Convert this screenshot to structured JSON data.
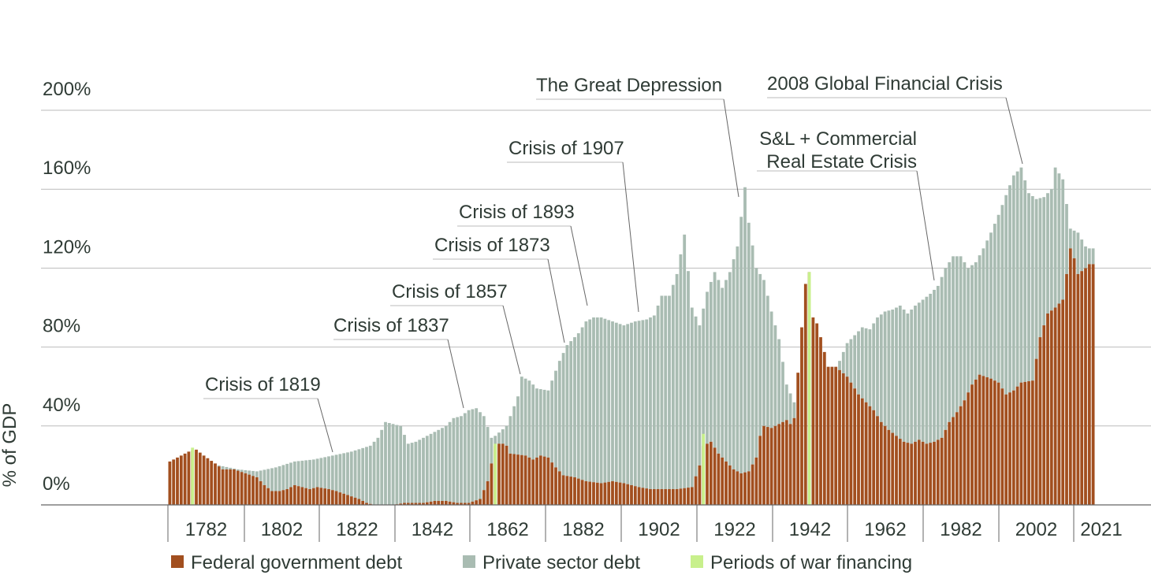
{
  "chart_data": {
    "type": "bar",
    "stacked": true,
    "ylabel": "% of GDP",
    "ylim": [
      0,
      200
    ],
    "y_ticks": [
      "0%",
      "40%",
      "80%",
      "120%",
      "160%",
      "200%"
    ],
    "y_tick_values": [
      0,
      40,
      80,
      120,
      160,
      200
    ],
    "x_tick_labels": [
      "1782",
      "1802",
      "1822",
      "1842",
      "1862",
      "1882",
      "1902",
      "1922",
      "1942",
      "1962",
      "1982",
      "2002",
      "2021"
    ],
    "x_range": [
      1776,
      2020
    ],
    "grid": "horizontal",
    "legend_position": "bottom",
    "colors": {
      "federal": "#a24f1f",
      "private": "#a9bcb2",
      "war": "#c8f08c",
      "axis": "#666666",
      "grid": "#bbbbbb",
      "text": "#2f3b35"
    },
    "series": [
      {
        "name": "Federal government debt",
        "key": "federal",
        "points": [
          [
            1776,
            22
          ],
          [
            1779,
            25
          ],
          [
            1781,
            27
          ],
          [
            1783,
            28
          ],
          [
            1785,
            25
          ],
          [
            1788,
            21
          ],
          [
            1790,
            18
          ],
          [
            1793,
            18
          ],
          [
            1796,
            16
          ],
          [
            1799,
            14
          ],
          [
            1801,
            10
          ],
          [
            1803,
            7
          ],
          [
            1805,
            7
          ],
          [
            1807,
            8
          ],
          [
            1809,
            10
          ],
          [
            1811,
            9
          ],
          [
            1813,
            8
          ],
          [
            1815,
            9
          ],
          [
            1818,
            8
          ],
          [
            1820,
            7
          ],
          [
            1823,
            5
          ],
          [
            1826,
            3
          ],
          [
            1828,
            1
          ],
          [
            1830,
            0
          ],
          [
            1833,
            0
          ],
          [
            1835,
            0
          ],
          [
            1838,
            1
          ],
          [
            1840,
            1
          ],
          [
            1843,
            1
          ],
          [
            1846,
            2
          ],
          [
            1849,
            2
          ],
          [
            1852,
            1
          ],
          [
            1855,
            1
          ],
          [
            1858,
            3
          ],
          [
            1860,
            12
          ],
          [
            1862,
            30
          ],
          [
            1863,
            31
          ],
          [
            1864,
            31
          ],
          [
            1865,
            30
          ],
          [
            1866,
            26
          ],
          [
            1870,
            25
          ],
          [
            1872,
            23
          ],
          [
            1874,
            25
          ],
          [
            1876,
            24
          ],
          [
            1878,
            19
          ],
          [
            1880,
            15
          ],
          [
            1883,
            14
          ],
          [
            1886,
            12
          ],
          [
            1890,
            11
          ],
          [
            1893,
            12
          ],
          [
            1896,
            11
          ],
          [
            1900,
            9
          ],
          [
            1903,
            8
          ],
          [
            1907,
            8
          ],
          [
            1910,
            8
          ],
          [
            1914,
            9
          ],
          [
            1916,
            20
          ],
          [
            1917,
            30
          ],
          [
            1919,
            32
          ],
          [
            1921,
            26
          ],
          [
            1923,
            22
          ],
          [
            1925,
            18
          ],
          [
            1927,
            16
          ],
          [
            1929,
            17
          ],
          [
            1931,
            24
          ],
          [
            1932,
            35
          ],
          [
            1933,
            40
          ],
          [
            1935,
            39
          ],
          [
            1937,
            41
          ],
          [
            1939,
            43
          ],
          [
            1940,
            41
          ],
          [
            1941,
            44
          ],
          [
            1942,
            67
          ],
          [
            1943,
            90
          ],
          [
            1944,
            112
          ],
          [
            1945,
            118
          ],
          [
            1946,
            95
          ],
          [
            1947,
            92
          ],
          [
            1948,
            85
          ],
          [
            1950,
            70
          ],
          [
            1952,
            70
          ],
          [
            1955,
            65
          ],
          [
            1958,
            56
          ],
          [
            1960,
            52
          ],
          [
            1962,
            48
          ],
          [
            1964,
            42
          ],
          [
            1966,
            38
          ],
          [
            1968,
            35
          ],
          [
            1970,
            32
          ],
          [
            1972,
            31
          ],
          [
            1974,
            33
          ],
          [
            1976,
            31
          ],
          [
            1978,
            32
          ],
          [
            1980,
            34
          ],
          [
            1982,
            42
          ],
          [
            1984,
            47
          ],
          [
            1986,
            53
          ],
          [
            1988,
            61
          ],
          [
            1990,
            66
          ],
          [
            1993,
            64
          ],
          [
            1995,
            62
          ],
          [
            1997,
            56
          ],
          [
            1999,
            58
          ],
          [
            2001,
            62
          ],
          [
            2004,
            63
          ],
          [
            2006,
            85
          ],
          [
            2008,
            97
          ],
          [
            2010,
            100
          ],
          [
            2012,
            104
          ],
          [
            2014,
            130
          ],
          [
            2015,
            125
          ],
          [
            2016,
            117
          ],
          [
            2018,
            120
          ],
          [
            2019,
            122
          ]
        ]
      },
      {
        "name": "Private sector debt",
        "key": "private",
        "points": [
          [
            1789,
            20
          ],
          [
            1794,
            18
          ],
          [
            1799,
            17
          ],
          [
            1804,
            19
          ],
          [
            1809,
            22
          ],
          [
            1814,
            23
          ],
          [
            1819,
            25
          ],
          [
            1824,
            27
          ],
          [
            1829,
            30
          ],
          [
            1831,
            34
          ],
          [
            1833,
            42
          ],
          [
            1835,
            41
          ],
          [
            1837,
            40
          ],
          [
            1839,
            31
          ],
          [
            1841,
            32
          ],
          [
            1843,
            34
          ],
          [
            1845,
            36
          ],
          [
            1847,
            38
          ],
          [
            1849,
            40
          ],
          [
            1851,
            44
          ],
          [
            1853,
            45
          ],
          [
            1855,
            48
          ],
          [
            1857,
            49
          ],
          [
            1859,
            45
          ],
          [
            1861,
            34
          ],
          [
            1862,
            35
          ],
          [
            1865,
            40
          ],
          [
            1868,
            55
          ],
          [
            1869,
            65
          ],
          [
            1871,
            63
          ],
          [
            1873,
            59
          ],
          [
            1876,
            58
          ],
          [
            1879,
            73
          ],
          [
            1881,
            81
          ],
          [
            1884,
            87
          ],
          [
            1886,
            93
          ],
          [
            1888,
            95
          ],
          [
            1890,
            95
          ],
          [
            1893,
            93
          ],
          [
            1896,
            91
          ],
          [
            1899,
            93
          ],
          [
            1902,
            94
          ],
          [
            1904,
            96
          ],
          [
            1906,
            106
          ],
          [
            1908,
            106
          ],
          [
            1910,
            117
          ],
          [
            1912,
            137
          ],
          [
            1914,
            100
          ],
          [
            1916,
            91
          ],
          [
            1918,
            108
          ],
          [
            1920,
            118
          ],
          [
            1922,
            110
          ],
          [
            1924,
            118
          ],
          [
            1926,
            131
          ],
          [
            1928,
            161
          ],
          [
            1929,
            143
          ],
          [
            1931,
            120
          ],
          [
            1933,
            114
          ],
          [
            1935,
            98
          ],
          [
            1937,
            84
          ],
          [
            1939,
            61
          ],
          [
            1941,
            52
          ],
          [
            1943,
            45
          ],
          [
            1945,
            44
          ],
          [
            1947,
            44
          ],
          [
            1949,
            52
          ],
          [
            1951,
            63
          ],
          [
            1953,
            73
          ],
          [
            1955,
            82
          ],
          [
            1957,
            86
          ],
          [
            1959,
            90
          ],
          [
            1961,
            89
          ],
          [
            1963,
            95
          ],
          [
            1965,
            98
          ],
          [
            1967,
            99
          ],
          [
            1969,
            101
          ],
          [
            1971,
            97
          ],
          [
            1973,
            101
          ],
          [
            1975,
            104
          ],
          [
            1977,
            107
          ],
          [
            1979,
            111
          ],
          [
            1981,
            120
          ],
          [
            1983,
            126
          ],
          [
            1985,
            126
          ],
          [
            1987,
            120
          ],
          [
            1989,
            123
          ],
          [
            1991,
            130
          ],
          [
            1993,
            138
          ],
          [
            1995,
            147
          ],
          [
            1997,
            157
          ],
          [
            1999,
            167
          ],
          [
            2001,
            171
          ],
          [
            2003,
            158
          ],
          [
            2005,
            155
          ],
          [
            2007,
            156
          ],
          [
            2009,
            160
          ],
          [
            2010,
            171
          ],
          [
            2012,
            165
          ],
          [
            2014,
            140
          ],
          [
            2016,
            138
          ],
          [
            2018,
            131
          ],
          [
            2019,
            130
          ]
        ]
      },
      {
        "name": "Periods of war financing",
        "key": "war",
        "ranges": [
          [
            1782,
            29
          ],
          [
            1862,
            31
          ],
          [
            1917,
            36
          ],
          [
            1945,
            118
          ]
        ]
      }
    ],
    "annotations": [
      {
        "lines": [
          "Crisis of 1819"
        ],
        "year": 1819
      },
      {
        "lines": [
          "Crisis of 1837"
        ],
        "year": 1837
      },
      {
        "lines": [
          "Crisis of 1857"
        ],
        "year": 1857
      },
      {
        "lines": [
          "Crisis of 1873"
        ],
        "year": 1873
      },
      {
        "lines": [
          "Crisis of 1893"
        ],
        "year": 1893
      },
      {
        "lines": [
          "Crisis of 1907"
        ],
        "year": 1907
      },
      {
        "lines": [
          "The Great Depression"
        ],
        "year": 1929
      },
      {
        "lines": [
          "S&L + Commercial",
          "Real Estate Crisis"
        ],
        "year": 1986
      },
      {
        "lines": [
          "2008 Global Financial Crisis"
        ],
        "year": 2008
      }
    ]
  }
}
